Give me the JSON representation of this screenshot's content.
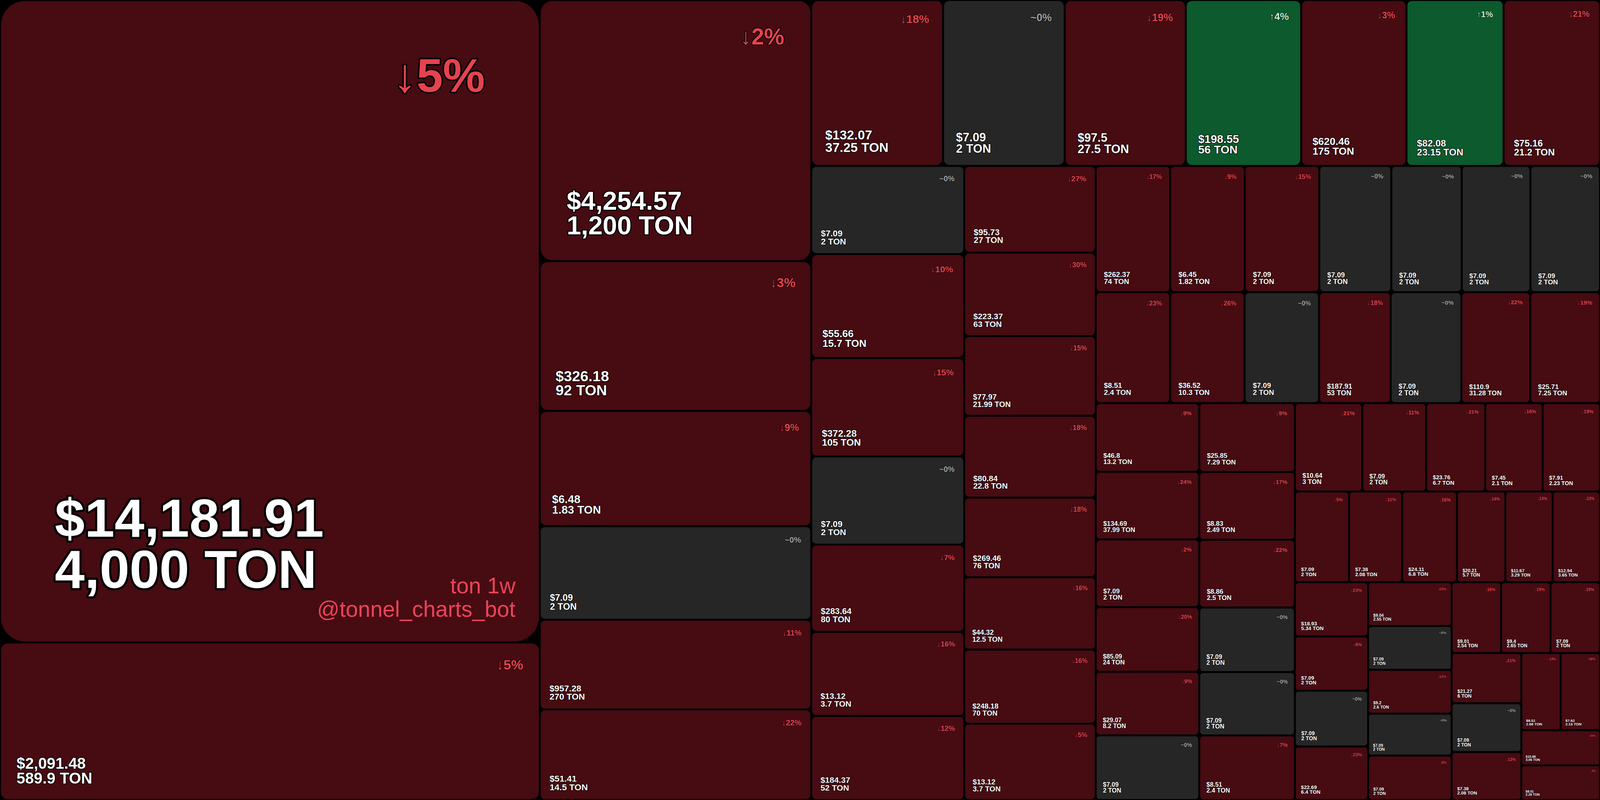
{
  "chart_data": {
    "type": "treemap",
    "title": "ton 1w",
    "subtitle": "@tonnel_charts_bot",
    "values": [
      331600,
      81300,
      67800,
      38900,
      29900,
      24300,
      23300,
      23500,
      20900,
      19300,
      19200,
      18300,
      16700,
      15400,
      15300,
      12900,
      15200,
      14400,
      12900,
      12750,
      12300,
      12300,
      10900,
      10500,
      10000,
      10300,
      10000,
      9100,
      9300,
      9600,
      9000,
      9000,
      9000,
      8700,
      8500,
      8300,
      8400,
      7900,
      7900,
      7900,
      7600,
      7500,
      7300,
      7400,
      6800,
      6700,
      6700,
      6400,
      6300,
      6400,
      6300,
      6200,
      6200,
      5900,
      5800,
      5900,
      5700,
      5400,
      5000,
      4850,
      4850,
      4700,
      4600,
      4750,
      4200,
      4100,
      4100,
      3800,
      3800,
      3900,
      3750,
      3500,
      3500,
      3500,
      3350,
      3550,
      3350,
      3350,
      3350,
      3350,
      3250,
      3200,
      2900,
      2900,
      2650,
      2600
    ],
    "prices": [
      "$14,181.91",
      "$2,091.48",
      "$4,254.57",
      "$326.18",
      "$6.48",
      "$7.09",
      "$957.28",
      "$51.41",
      "$132.07",
      "$7.09",
      "$97.5",
      "$198.55",
      "$620.46",
      "$82.08",
      "$75.16",
      "$7.09",
      "$55.66",
      "$372.28",
      "$7.09",
      "$283.64",
      "$13.12",
      "$184.37",
      "$95.73",
      "$223.37",
      "$77.97",
      "$80.84",
      "$269.46",
      "$44.32",
      "$248.18",
      "$13.12",
      "$262.37",
      "$6.45",
      "$7.09",
      "$7.09",
      "$7.09",
      "$7.09",
      "$7.09",
      "$8.51",
      "$36.52",
      "$7.09",
      "$187.91",
      "$7.09",
      "$110.9",
      "$25.71",
      "$46.8",
      "$134.69",
      "$7.09",
      "$85.09",
      "$29.07",
      "$7.09",
      "$25.85",
      "$8.83",
      "$8.86",
      "$7.09",
      "$7.09",
      "$8.51",
      "$10.64",
      "$7.09",
      "$23.76",
      "$7.45",
      "$7.91",
      "$7.09",
      "$7.38",
      "$24.11",
      "$20.21",
      "$11.67",
      "$12.94",
      "$18.93",
      "$7.09",
      "$7.09",
      "$22.69",
      "$9.04",
      "$7.09",
      "$9.2",
      "$7.09",
      "$7.09",
      "$9.01",
      "$9.4",
      "$7.09",
      "$21.27",
      "$7.09",
      "$7.38",
      "$9.51",
      "$7.62",
      "$10.86",
      "$8.01"
    ],
    "amounts": [
      "4,000 TON",
      "589.9 TON",
      "1,200 TON",
      "92 TON",
      "1.83 TON",
      "2 TON",
      "270 TON",
      "14.5 TON",
      "37.25 TON",
      "2 TON",
      "27.5 TON",
      "56 TON",
      "175 TON",
      "23.15 TON",
      "21.2 TON",
      "2 TON",
      "15.7 TON",
      "105 TON",
      "2 TON",
      "80 TON",
      "3.7 TON",
      "52 TON",
      "27 TON",
      "63 TON",
      "21.99 TON",
      "22.8 TON",
      "76 TON",
      "12.5 TON",
      "70 TON",
      "3.7 TON",
      "74 TON",
      "1.82 TON",
      "2 TON",
      "2 TON",
      "2 TON",
      "2 TON",
      "2 TON",
      "2.4 TON",
      "10.3 TON",
      "2 TON",
      "53 TON",
      "2 TON",
      "31.28 TON",
      "7.25 TON",
      "13.2 TON",
      "37.99 TON",
      "2 TON",
      "24 TON",
      "8.2 TON",
      "2 TON",
      "7.29 TON",
      "2.49 TON",
      "2.5 TON",
      "2 TON",
      "2 TON",
      "2.4 TON",
      "3 TON",
      "2 TON",
      "6.7 TON",
      "2.1 TON",
      "2.23 TON",
      "2 TON",
      "2.08 TON",
      "6.8 TON",
      "5.7 TON",
      "3.29 TON",
      "3.65 TON",
      "5.34 TON",
      "2 TON",
      "2 TON",
      "6.4 TON",
      "2.55 TON",
      "2 TON",
      "2.6 TON",
      "2 TON",
      "2 TON",
      "2.54 TON",
      "2.65 TON",
      "2 TON",
      "6 TON",
      "2 TON",
      "2.08 TON",
      "2.68 TON",
      "2.15 TON",
      "3.06 TON",
      "2.26 TON"
    ],
    "changes": [
      -5,
      -5,
      -2,
      -3,
      -9,
      0,
      -11,
      -22,
      -18,
      0,
      -19,
      4,
      -3,
      1,
      -21,
      0,
      -10,
      -15,
      0,
      -7,
      -16,
      -12,
      -27,
      -30,
      -15,
      -18,
      -18,
      -16,
      -16,
      -5,
      -17,
      -9,
      -15,
      0,
      0,
      0,
      0,
      -23,
      -26,
      0,
      -18,
      0,
      -22,
      -19,
      -9,
      -24,
      -2,
      -20,
      -9,
      0,
      -9,
      -17,
      -22,
      0,
      0,
      -7,
      -21,
      -11,
      -21,
      -16,
      -19,
      -5,
      -11,
      -16,
      -14,
      -13,
      -23,
      -23,
      -8,
      0,
      -23,
      -23,
      0,
      -12,
      0,
      -3,
      -16,
      -19,
      -19,
      -21,
      0,
      -13,
      -13,
      -19,
      -10,
      -2
    ],
    "change_labels": [
      "↓5%",
      "↓5%",
      "↓2%",
      "↓3%",
      "↓9%",
      "~0%",
      "↓11%",
      "↓22%",
      "↓18%",
      "~0%",
      "↓19%",
      "↑4%",
      "↓3%",
      "↑1%",
      "↓21%",
      "~0%",
      "↓10%",
      "↓15%",
      "~0%",
      "↓7%",
      "↓16%",
      "↓12%",
      "↓27%",
      "↓30%",
      "↓15%",
      "↓18%",
      "↓18%",
      "↓16%",
      "↓16%",
      "↓5%",
      "↓17%",
      "↓9%",
      "↓15%",
      "~0%",
      "~0%",
      "~0%",
      "~0%",
      "↓23%",
      "↓26%",
      "~0%",
      "↓18%",
      "~0%",
      "↓22%",
      "↓19%",
      "↓9%",
      "↓24%",
      "↓2%",
      "↓20%",
      "↓9%",
      "~0%",
      "↓9%",
      "↓17%",
      "↓22%",
      "~0%",
      "~0%",
      "↓7%",
      "↓21%",
      "↓11%",
      "↓21%",
      "↓16%",
      "↓19%",
      "↓5%",
      "↓11%",
      "↓16%",
      "↓14%",
      "↓13%",
      "↓23%",
      "↓23%",
      "↓8%",
      "~0%",
      "↓23%",
      "↓23%",
      "~0%",
      "↓12%",
      "~0%",
      "↓3%",
      "↓16%",
      "↓19%",
      "↓19%",
      "↓21%",
      "~0%",
      "↓13%",
      "↓13%",
      "↓19%",
      "↓10%",
      "↓2%"
    ]
  }
}
